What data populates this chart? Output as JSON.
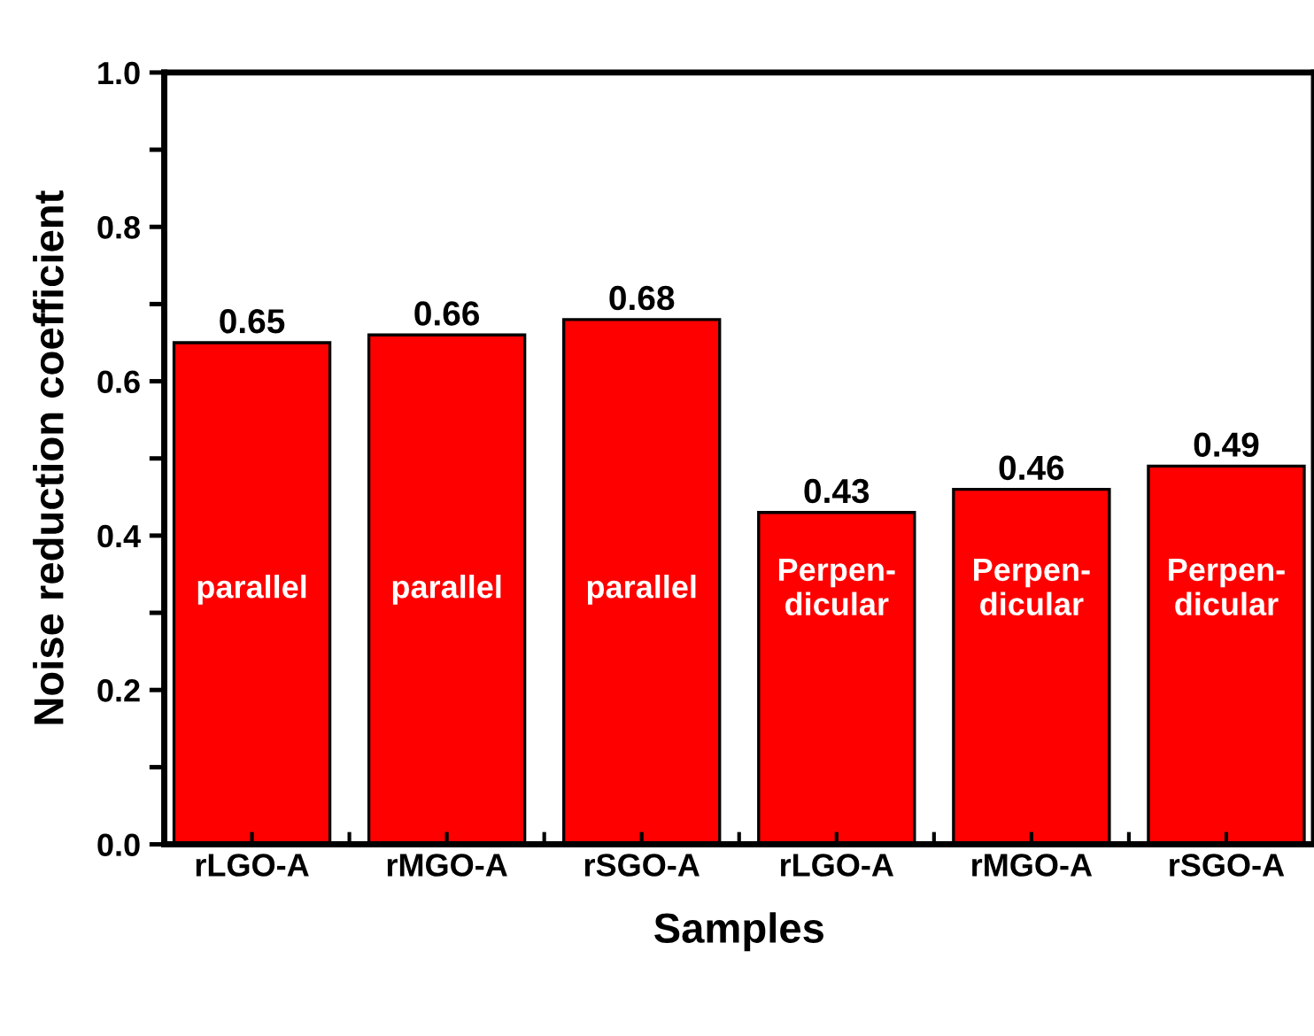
{
  "chart_data": {
    "type": "bar",
    "xlabel": "Samples",
    "ylabel": "Noise reduction coefficient",
    "categories": [
      "rLGO-A",
      "rMGO-A",
      "rSGO-A",
      "rLGO-A",
      "rMGO-A",
      "rSGO-A"
    ],
    "values": [
      0.65,
      0.66,
      0.68,
      0.43,
      0.46,
      0.49
    ],
    "color": "#ff0000",
    "data_labels": true,
    "annotations": [
      "parallel",
      "parallel",
      "parallel",
      "Perpen-\ndicular",
      "Perpen-\ndicular",
      "Perpen-\ndicular"
    ],
    "ylim": [
      0,
      1.0
    ],
    "yticks": [
      {
        "value": 0,
        "label": "0.0"
      },
      {
        "value": 0.1,
        "label": null
      },
      0.2,
      {
        "value": 0.3,
        "label": null
      },
      0.4,
      {
        "value": 0.5,
        "label": null
      },
      0.6,
      {
        "value": 0.7,
        "label": null
      },
      0.8,
      {
        "value": 0.9,
        "label": null
      },
      {
        "value": 1,
        "label": "1.0"
      }
    ],
    "grid": false,
    "legend": false
  }
}
